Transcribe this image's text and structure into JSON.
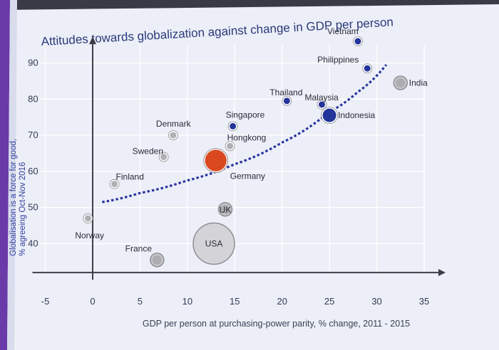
{
  "chart_data": {
    "type": "scatter",
    "title": "Attitudes towards globalization against change in GDP per person",
    "xlabel": "GDP per person at purchasing-power parity, % change, 2011 - 2015",
    "ylabel_lines": [
      "Globalisation is a force for good,",
      "% agreeing Oct-Nov 2016"
    ],
    "xlim": [
      -5,
      35
    ],
    "ylim": [
      32,
      95
    ],
    "xticks": [
      -5,
      0,
      5,
      10,
      15,
      20,
      25,
      30,
      35
    ],
    "yticks": [
      40,
      50,
      60,
      70,
      80,
      90
    ],
    "points": [
      {
        "name": "Norway",
        "x": -0.5,
        "y": 47,
        "size": "small",
        "tone": "grey"
      },
      {
        "name": "Finland",
        "x": 2.3,
        "y": 56.5,
        "size": "small",
        "tone": "grey"
      },
      {
        "name": "Sweden",
        "x": 7.5,
        "y": 64,
        "size": "small",
        "tone": "grey"
      },
      {
        "name": "Denmark",
        "x": 8.5,
        "y": 70,
        "size": "small",
        "tone": "grey"
      },
      {
        "name": "France",
        "x": 6.8,
        "y": 35.5,
        "size": "medium",
        "tone": "grey"
      },
      {
        "name": "USA",
        "x": 12.8,
        "y": 40,
        "size": "xlarge",
        "tone": "grey"
      },
      {
        "name": "UK",
        "x": 14,
        "y": 49.5,
        "size": "medium",
        "tone": "grey"
      },
      {
        "name": "Germany",
        "x": 13,
        "y": 63,
        "size": "large",
        "tone": "red"
      },
      {
        "name": "Hongkong",
        "x": 14.5,
        "y": 67,
        "size": "small",
        "tone": "grey"
      },
      {
        "name": "Singapore",
        "x": 14.8,
        "y": 72.5,
        "size": "small",
        "tone": "blue"
      },
      {
        "name": "Thailand",
        "x": 20.5,
        "y": 79.5,
        "size": "small",
        "tone": "blue"
      },
      {
        "name": "Malaysia",
        "x": 24.2,
        "y": 78.5,
        "size": "small",
        "tone": "blue"
      },
      {
        "name": "Indonesia",
        "x": 25,
        "y": 75.5,
        "size": "medium",
        "tone": "blue"
      },
      {
        "name": "Philippines",
        "x": 29,
        "y": 88.5,
        "size": "small",
        "tone": "blue"
      },
      {
        "name": "Vietnam",
        "x": 28,
        "y": 96,
        "size": "small",
        "tone": "blue"
      },
      {
        "name": "India",
        "x": 32.5,
        "y": 84.5,
        "size": "medium",
        "tone": "grey"
      }
    ],
    "trend": [
      [
        1,
        51.5
      ],
      [
        5,
        54
      ],
      [
        10,
        57.5
      ],
      [
        15,
        62
      ],
      [
        20,
        68
      ],
      [
        25,
        76.5
      ],
      [
        28,
        82
      ],
      [
        31,
        89.5
      ]
    ]
  },
  "colors": {
    "red": "#d9481e",
    "blue": "#23349a",
    "grey": "#9b9b9f",
    "axis": "#3c3c4a",
    "trend": "#2a36a0",
    "title": "#2a3a7a"
  }
}
